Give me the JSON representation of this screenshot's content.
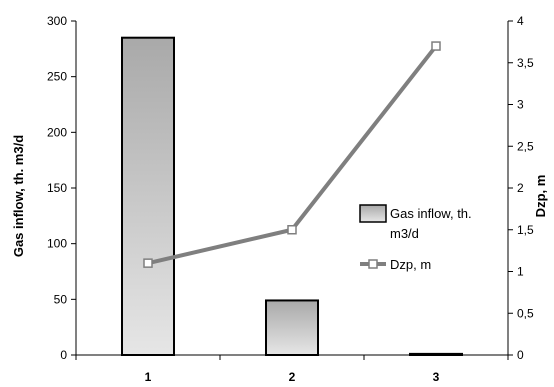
{
  "chart_data": {
    "type": "bar",
    "categories": [
      "1",
      "2",
      "3"
    ],
    "series": [
      {
        "name": "Gas inflow, th. m3/d",
        "type": "bar",
        "axis": "left",
        "values": [
          285,
          49,
          1
        ]
      },
      {
        "name": "Dzp, m",
        "type": "line",
        "axis": "right",
        "values": [
          1.1,
          1.5,
          3.7
        ]
      }
    ],
    "ylabel": "Gas inflow, th. m3/d",
    "ylabel_right": "Dzp, m",
    "ylim": [
      0,
      300
    ],
    "ylim_right": [
      0,
      4
    ],
    "y_ticks": [
      "0",
      "50",
      "100",
      "150",
      "200",
      "250",
      "300"
    ],
    "y_right_ticks": [
      "0",
      "0,5",
      "1",
      "1,5",
      "2",
      "2,5",
      "3",
      "3,5",
      "4"
    ],
    "grid": false,
    "legend": {
      "placement": "right",
      "bar_label_line1": "Gas inflow, th.",
      "bar_label_line2": "m3/d",
      "line_label": "Dzp, m"
    },
    "colors": {
      "bar_fill_top": "#a9a9a9",
      "bar_fill_bottom": "#e6e6e6",
      "bar_stroke": "#000000",
      "line": "#7f7f7f",
      "marker_fill": "#ffffff"
    }
  }
}
